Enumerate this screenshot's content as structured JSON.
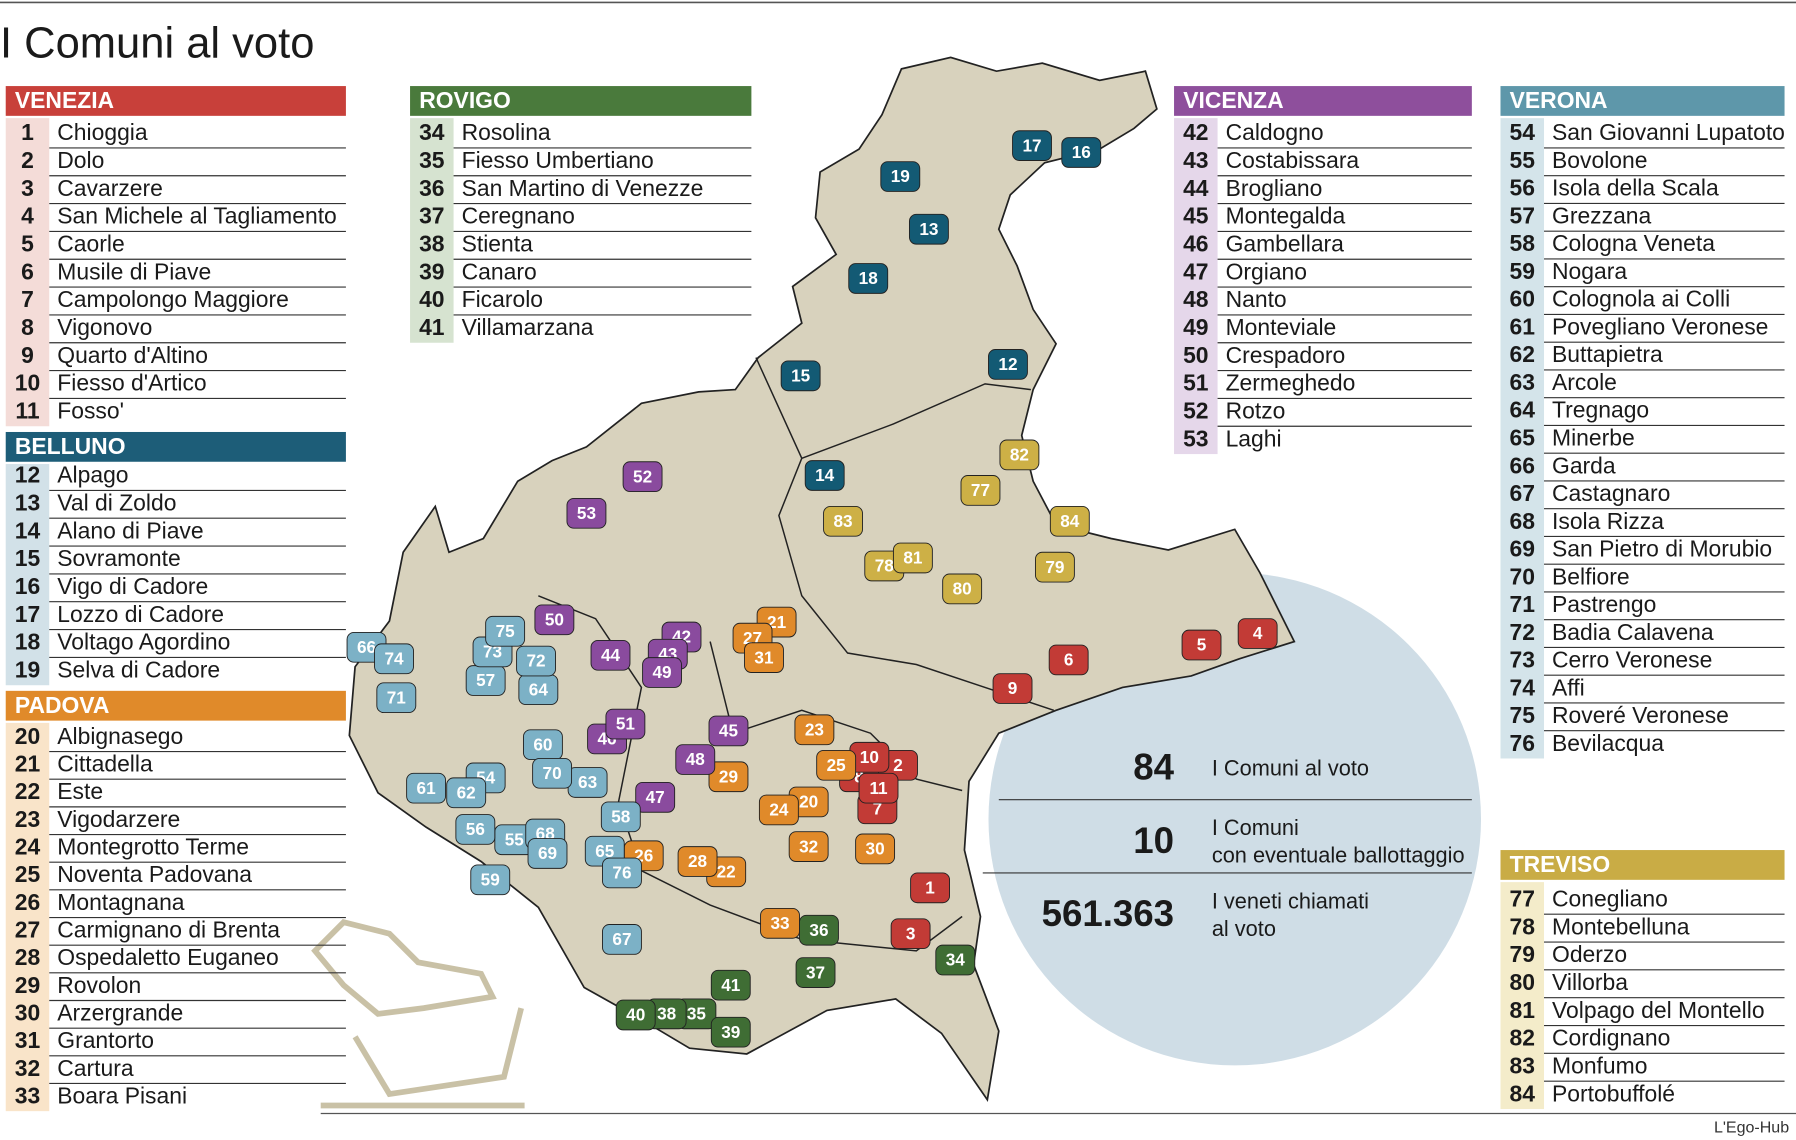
{
  "title": "I Comuni al voto",
  "credit": "L'Ego-Hub",
  "stats": [
    {
      "value": "84",
      "label": [
        "I Comuni al voto"
      ]
    },
    {
      "value": "10",
      "label": [
        "I Comuni",
        "con eventuale ballottaggio"
      ]
    },
    {
      "value": "561.363",
      "label": [
        "I veneti chiamati",
        "al voto"
      ]
    }
  ],
  "groups": [
    {
      "name": "VENEZIA",
      "color": "#c8403a",
      "light": "#f4dcd8",
      "mark": "#c23b36",
      "items": [
        {
          "number": 1,
          "name": "Chioggia"
        },
        {
          "number": 2,
          "name": "Dolo"
        },
        {
          "number": 3,
          "name": "Cavarzere"
        },
        {
          "number": 4,
          "name": "San Michele al Tagliamento"
        },
        {
          "number": 5,
          "name": "Caorle"
        },
        {
          "number": 6,
          "name": "Musile di Piave"
        },
        {
          "number": 7,
          "name": "Campolongo Maggiore"
        },
        {
          "number": 8,
          "name": "Vigonovo"
        },
        {
          "number": 9,
          "name": "Quarto d'Altino"
        },
        {
          "number": 10,
          "name": "Fiesso d'Artico"
        },
        {
          "number": 11,
          "name": "Fosso'"
        }
      ]
    },
    {
      "name": "BELLUNO",
      "color": "#1d5d78",
      "light": "#d2e1e8",
      "mark": "#135a74",
      "items": [
        {
          "number": 12,
          "name": "Alpago"
        },
        {
          "number": 13,
          "name": "Val di Zoldo"
        },
        {
          "number": 14,
          "name": "Alano di Piave"
        },
        {
          "number": 15,
          "name": "Sovramonte"
        },
        {
          "number": 16,
          "name": "Vigo di Cadore"
        },
        {
          "number": 17,
          "name": "Lozzo di Cadore"
        },
        {
          "number": 18,
          "name": "Voltago Agordino"
        },
        {
          "number": 19,
          "name": "Selva di Cadore"
        }
      ]
    },
    {
      "name": "PADOVA",
      "color": "#e08a2a",
      "light": "#f9e4c9",
      "mark": "#e08a2a",
      "items": [
        {
          "number": 20,
          "name": "Albignasego"
        },
        {
          "number": 21,
          "name": "Cittadella"
        },
        {
          "number": 22,
          "name": "Este"
        },
        {
          "number": 23,
          "name": "Vigodarzere"
        },
        {
          "number": 24,
          "name": "Montegrotto Terme"
        },
        {
          "number": 25,
          "name": "Noventa Padovana"
        },
        {
          "number": 26,
          "name": "Montagnana"
        },
        {
          "number": 27,
          "name": "Carmignano di Brenta"
        },
        {
          "number": 28,
          "name": "Ospedaletto Euganeo"
        },
        {
          "number": 29,
          "name": "Rovolon"
        },
        {
          "number": 30,
          "name": "Arzergrande"
        },
        {
          "number": 31,
          "name": "Grantorto"
        },
        {
          "number": 32,
          "name": "Cartura"
        },
        {
          "number": 33,
          "name": "Boara Pisani"
        }
      ]
    },
    {
      "name": "ROVIGO",
      "color": "#4a7a3c",
      "light": "#d6e3d0",
      "mark": "#3f6d34",
      "items": [
        {
          "number": 34,
          "name": "Rosolina"
        },
        {
          "number": 35,
          "name": "Fiesso Umbertiano"
        },
        {
          "number": 36,
          "name": "San Martino di Venezze"
        },
        {
          "number": 37,
          "name": "Ceregnano"
        },
        {
          "number": 38,
          "name": "Stienta"
        },
        {
          "number": 39,
          "name": "Canaro"
        },
        {
          "number": 40,
          "name": "Ficarolo"
        },
        {
          "number": 41,
          "name": "Villamarzana"
        }
      ]
    },
    {
      "name": "VICENZA",
      "color": "#8e4f9c",
      "light": "#e5d7ea",
      "mark": "#8a4b9e",
      "items": [
        {
          "number": 42,
          "name": "Caldogno"
        },
        {
          "number": 43,
          "name": "Costabissara"
        },
        {
          "number": 44,
          "name": "Brogliano"
        },
        {
          "number": 45,
          "name": "Montegalda"
        },
        {
          "number": 46,
          "name": "Gambellara"
        },
        {
          "number": 47,
          "name": "Orgiano"
        },
        {
          "number": 48,
          "name": "Nanto"
        },
        {
          "number": 49,
          "name": "Monteviale"
        },
        {
          "number": 50,
          "name": "Crespadoro"
        },
        {
          "number": 51,
          "name": "Zermeghedo"
        },
        {
          "number": 52,
          "name": "Rotzo"
        },
        {
          "number": 53,
          "name": "Laghi"
        }
      ]
    },
    {
      "name": "VERONA",
      "color": "#5e97aa",
      "light": "#d4e4ea",
      "mark": "#7cb1c6",
      "items": [
        {
          "number": 54,
          "name": "San Giovanni Lupatoto"
        },
        {
          "number": 55,
          "name": "Bovolone"
        },
        {
          "number": 56,
          "name": "Isola della Scala"
        },
        {
          "number": 57,
          "name": "Grezzana"
        },
        {
          "number": 58,
          "name": "Cologna Veneta"
        },
        {
          "number": 59,
          "name": "Nogara"
        },
        {
          "number": 60,
          "name": "Colognola ai Colli"
        },
        {
          "number": 61,
          "name": "Povegliano Veronese"
        },
        {
          "number": 62,
          "name": "Buttapietra"
        },
        {
          "number": 63,
          "name": "Arcole"
        },
        {
          "number": 64,
          "name": "Tregnago"
        },
        {
          "number": 65,
          "name": "Minerbe"
        },
        {
          "number": 66,
          "name": "Garda"
        },
        {
          "number": 67,
          "name": "Castagnaro"
        },
        {
          "number": 68,
          "name": "Isola Rizza"
        },
        {
          "number": 69,
          "name": "San Pietro di Morubio"
        },
        {
          "number": 70,
          "name": "Belfiore"
        },
        {
          "number": 71,
          "name": "Pastrengo"
        },
        {
          "number": 72,
          "name": "Badia Calavena"
        },
        {
          "number": 73,
          "name": "Cerro Veronese"
        },
        {
          "number": 74,
          "name": "Affi"
        },
        {
          "number": 75,
          "name": "Roveré Veronese"
        },
        {
          "number": 76,
          "name": "Bevilacqua"
        }
      ]
    },
    {
      "name": "TREVISO",
      "color": "#c9ac45",
      "light": "#f4ecca",
      "mark": "#cdb046",
      "items": [
        {
          "number": 77,
          "name": "Conegliano"
        },
        {
          "number": 78,
          "name": "Montebelluna"
        },
        {
          "number": 79,
          "name": "Oderzo"
        },
        {
          "number": 80,
          "name": "Villorba"
        },
        {
          "number": 81,
          "name": "Volpago del Montello"
        },
        {
          "number": 82,
          "name": "Cordignano"
        },
        {
          "number": 83,
          "name": "Monfumo"
        },
        {
          "number": 84,
          "name": "Portobuffolé"
        }
      ]
    }
  ]
}
